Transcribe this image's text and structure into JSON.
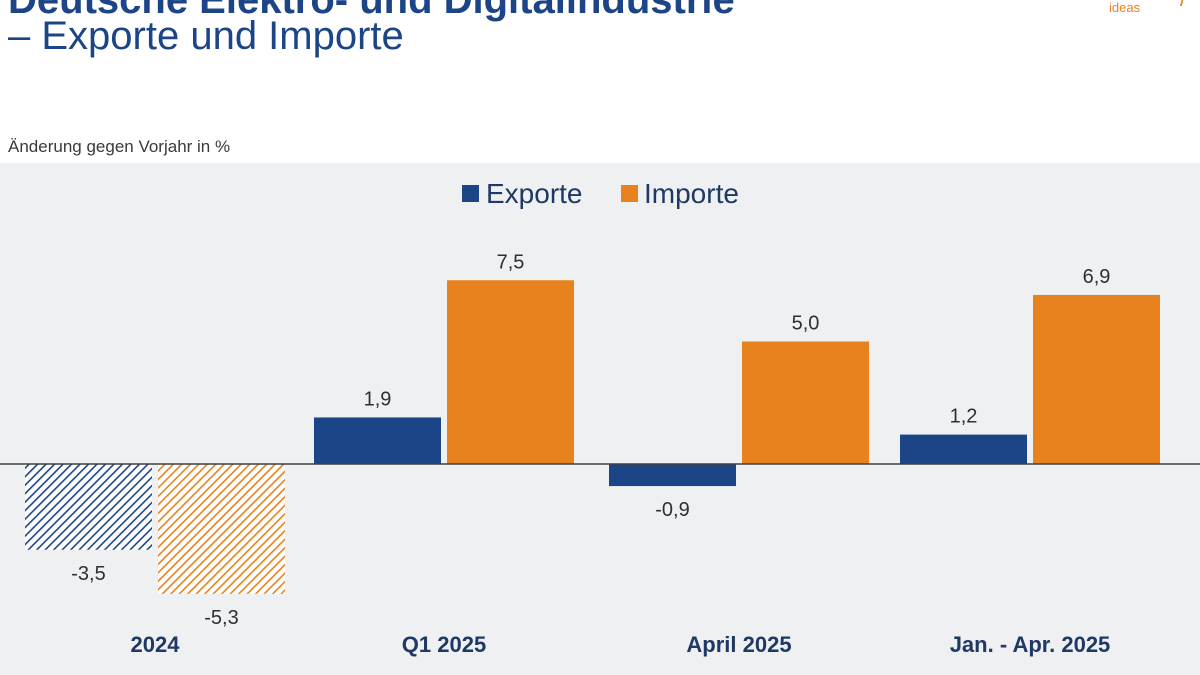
{
  "header": {
    "title_line1": "Deutsche Elektro- und Digitalindustrie",
    "title_line2": "– Exporte und Importe",
    "logo_text": "ideas"
  },
  "chart_data": {
    "type": "bar",
    "title": "Deutsche Elektro- und Digitalindustrie – Exporte und Importe",
    "ylabel": "Änderung gegen Vorjahr in %",
    "categories": [
      "2024",
      "Q1 2025",
      "April 2025",
      "Jan. - Apr. 2025"
    ],
    "series": [
      {
        "name": "Exporte",
        "color": "#1c4587",
        "values": [
          -3.5,
          1.9,
          -0.9,
          1.2
        ],
        "labels": [
          "-3,5",
          "1,9",
          "-0,9",
          "1,2"
        ]
      },
      {
        "name": "Importe",
        "color": "#e8821e",
        "values": [
          -5.3,
          7.5,
          5.0,
          6.9
        ],
        "labels": [
          "-5,3",
          "7,5",
          "5,0",
          "6,9"
        ]
      }
    ],
    "hatched_categories": [
      "2024"
    ],
    "ylim": [
      -6.0,
      9.6
    ],
    "legend": "top-center",
    "grid": false
  }
}
